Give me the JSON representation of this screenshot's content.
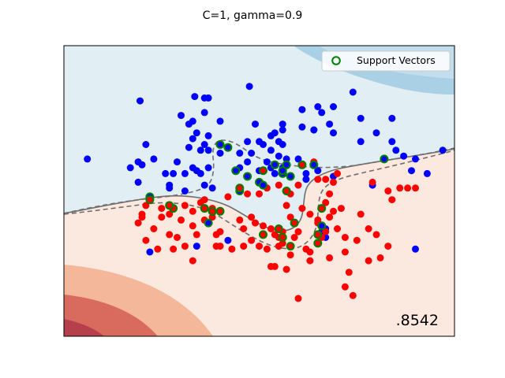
{
  "chart_data": {
    "type": "scatter",
    "title": "C=1, gamma=0.9",
    "score_label": ".8542",
    "legend": {
      "label": "Support Vectors",
      "placement": "top-right"
    },
    "xlim": [
      0,
      1
    ],
    "ylim": [
      0,
      1
    ],
    "grid": false,
    "colors": {
      "class_blue": "#0000ff",
      "class_red": "#ff0000",
      "support_vector_edge": "#008000",
      "boundary_line": "#6e6e6e",
      "region_blue_light": "#e1eef4",
      "region_blue_mid": "#a9d0e5",
      "region_red_light": "#fbe8de",
      "region_red_mid": "#f5b79a",
      "region_red_dark": "#d86a5e",
      "region_red_darkest": "#b5404c"
    },
    "series": [
      {
        "class": "blue",
        "points": [
          [
            0.475,
            0.86
          ],
          [
            0.335,
            0.825
          ],
          [
            0.195,
            0.81
          ],
          [
            0.36,
            0.77
          ],
          [
            0.49,
            0.73
          ],
          [
            0.33,
            0.74
          ],
          [
            0.34,
            0.7
          ],
          [
            0.61,
            0.78
          ],
          [
            0.37,
            0.69
          ],
          [
            0.55,
            0.67
          ],
          [
            0.21,
            0.66
          ],
          [
            0.51,
            0.66
          ],
          [
            0.47,
            0.67
          ],
          [
            0.4,
            0.63
          ],
          [
            0.33,
            0.68
          ],
          [
            0.36,
            0.66
          ],
          [
            0.65,
            0.79
          ],
          [
            0.56,
            0.73
          ],
          [
            0.27,
            0.51
          ],
          [
            0.48,
            0.63
          ],
          [
            0.69,
            0.79
          ],
          [
            0.64,
            0.71
          ],
          [
            0.56,
            0.66
          ],
          [
            0.61,
            0.72
          ],
          [
            0.35,
            0.64
          ],
          [
            0.23,
            0.61
          ],
          [
            0.28,
            0.56
          ],
          [
            0.19,
            0.6
          ],
          [
            0.54,
            0.56
          ],
          [
            0.84,
            0.75
          ],
          [
            0.17,
            0.58
          ],
          [
            0.5,
            0.57
          ],
          [
            0.31,
            0.5
          ],
          [
            0.37,
            0.58
          ],
          [
            0.06,
            0.61
          ],
          [
            0.27,
            0.52
          ],
          [
            0.35,
            0.56
          ],
          [
            0.52,
            0.6
          ],
          [
            0.36,
            0.52
          ],
          [
            0.53,
            0.64
          ],
          [
            0.47,
            0.6
          ],
          [
            0.65,
            0.57
          ],
          [
            0.76,
            0.67
          ],
          [
            0.87,
            0.62
          ],
          [
            0.79,
            0.52
          ],
          [
            0.89,
            0.57
          ],
          [
            0.97,
            0.64
          ],
          [
            0.9,
            0.61
          ],
          [
            0.68,
            0.73
          ],
          [
            0.2,
            0.59
          ],
          [
            0.69,
            0.7
          ],
          [
            0.29,
            0.6
          ],
          [
            0.62,
            0.56
          ],
          [
            0.55,
            0.62
          ],
          [
            0.38,
            0.51
          ],
          [
            0.62,
            0.54
          ],
          [
            0.32,
            0.73
          ],
          [
            0.93,
            0.56
          ],
          [
            0.6,
            0.61
          ],
          [
            0.84,
            0.67
          ],
          [
            0.26,
            0.56
          ],
          [
            0.53,
            0.58
          ],
          [
            0.56,
            0.58
          ],
          [
            0.69,
            0.55
          ],
          [
            0.45,
            0.63
          ],
          [
            0.57,
            0.61
          ],
          [
            0.34,
            0.57
          ],
          [
            0.31,
            0.56
          ],
          [
            0.45,
            0.58
          ],
          [
            0.37,
            0.64
          ],
          [
            0.42,
            0.33
          ],
          [
            0.67,
            0.37
          ],
          [
            0.34,
            0.31
          ],
          [
            0.22,
            0.29
          ],
          [
            0.9,
            0.3
          ],
          [
            0.37,
            0.82
          ],
          [
            0.74,
            0.84
          ],
          [
            0.76,
            0.75
          ],
          [
            0.8,
            0.7
          ],
          [
            0.53,
            0.69
          ],
          [
            0.85,
            0.64
          ],
          [
            0.4,
            0.74
          ],
          [
            0.33,
            0.58
          ],
          [
            0.32,
            0.65
          ],
          [
            0.66,
            0.77
          ],
          [
            0.64,
            0.71
          ],
          [
            0.56,
            0.71
          ],
          [
            0.36,
            0.82
          ],
          [
            0.3,
            0.76
          ],
          [
            0.5,
            0.67
          ],
          [
            0.19,
            0.53
          ],
          [
            0.54,
            0.7
          ],
          [
            0.66,
            0.36
          ],
          [
            0.67,
            0.34
          ]
        ],
        "support_vectors": [
          [
            0.4,
            0.66
          ],
          [
            0.42,
            0.65
          ],
          [
            0.44,
            0.57
          ],
          [
            0.47,
            0.55
          ],
          [
            0.5,
            0.53
          ],
          [
            0.51,
            0.52
          ],
          [
            0.56,
            0.56
          ],
          [
            0.58,
            0.55
          ],
          [
            0.54,
            0.59
          ],
          [
            0.64,
            0.59
          ],
          [
            0.45,
            0.5
          ],
          [
            0.22,
            0.48
          ],
          [
            0.37,
            0.39
          ],
          [
            0.66,
            0.38
          ],
          [
            0.82,
            0.61
          ],
          [
            0.57,
            0.59
          ],
          [
            0.56,
            0.57
          ]
        ]
      },
      {
        "class": "red",
        "points": [
          [
            0.3,
            0.4
          ],
          [
            0.25,
            0.44
          ],
          [
            0.23,
            0.37
          ],
          [
            0.33,
            0.43
          ],
          [
            0.29,
            0.34
          ],
          [
            0.36,
            0.4
          ],
          [
            0.35,
            0.46
          ],
          [
            0.38,
            0.41
          ],
          [
            0.33,
            0.38
          ],
          [
            0.34,
            0.35
          ],
          [
            0.24,
            0.3
          ],
          [
            0.21,
            0.33
          ],
          [
            0.33,
            0.26
          ],
          [
            0.28,
            0.3
          ],
          [
            0.39,
            0.35
          ],
          [
            0.4,
            0.36
          ],
          [
            0.45,
            0.4
          ],
          [
            0.46,
            0.37
          ],
          [
            0.53,
            0.37
          ],
          [
            0.55,
            0.34
          ],
          [
            0.56,
            0.32
          ],
          [
            0.59,
            0.34
          ],
          [
            0.5,
            0.31
          ],
          [
            0.52,
            0.3
          ],
          [
            0.58,
            0.28
          ],
          [
            0.62,
            0.3
          ],
          [
            0.63,
            0.29
          ],
          [
            0.67,
            0.36
          ],
          [
            0.68,
            0.41
          ],
          [
            0.7,
            0.37
          ],
          [
            0.72,
            0.34
          ],
          [
            0.76,
            0.42
          ],
          [
            0.78,
            0.37
          ],
          [
            0.75,
            0.33
          ],
          [
            0.72,
            0.29
          ],
          [
            0.68,
            0.27
          ],
          [
            0.63,
            0.26
          ],
          [
            0.54,
            0.24
          ],
          [
            0.57,
            0.23
          ],
          [
            0.73,
            0.22
          ],
          [
            0.74,
            0.14
          ],
          [
            0.72,
            0.17
          ],
          [
            0.6,
            0.13
          ],
          [
            0.53,
            0.24
          ],
          [
            0.48,
            0.33
          ],
          [
            0.43,
            0.3
          ],
          [
            0.39,
            0.31
          ],
          [
            0.4,
            0.31
          ],
          [
            0.46,
            0.31
          ],
          [
            0.49,
            0.39
          ],
          [
            0.36,
            0.47
          ],
          [
            0.31,
            0.45
          ],
          [
            0.27,
            0.35
          ],
          [
            0.31,
            0.31
          ],
          [
            0.38,
            0.44
          ],
          [
            0.27,
            0.42
          ],
          [
            0.21,
            0.45
          ],
          [
            0.2,
            0.42
          ],
          [
            0.25,
            0.41
          ],
          [
            0.19,
            0.39
          ],
          [
            0.2,
            0.41
          ],
          [
            0.42,
            0.48
          ],
          [
            0.48,
            0.41
          ],
          [
            0.51,
            0.38
          ],
          [
            0.54,
            0.35
          ],
          [
            0.55,
            0.31
          ],
          [
            0.56,
            0.36
          ],
          [
            0.6,
            0.36
          ],
          [
            0.65,
            0.39
          ],
          [
            0.71,
            0.44
          ],
          [
            0.78,
            0.26
          ],
          [
            0.81,
            0.27
          ],
          [
            0.8,
            0.35
          ],
          [
            0.83,
            0.31
          ],
          [
            0.83,
            0.5
          ],
          [
            0.88,
            0.51
          ],
          [
            0.9,
            0.51
          ],
          [
            0.84,
            0.47
          ],
          [
            0.79,
            0.53
          ],
          [
            0.86,
            0.51
          ],
          [
            0.7,
            0.56
          ],
          [
            0.69,
            0.53
          ],
          [
            0.65,
            0.54
          ],
          [
            0.6,
            0.52
          ],
          [
            0.58,
            0.49
          ],
          [
            0.55,
            0.52
          ],
          [
            0.52,
            0.51
          ],
          [
            0.5,
            0.49
          ],
          [
            0.47,
            0.49
          ],
          [
            0.64,
            0.6
          ],
          [
            0.67,
            0.54
          ],
          [
            0.68,
            0.49
          ],
          [
            0.57,
            0.45
          ],
          [
            0.61,
            0.44
          ],
          [
            0.65,
            0.4
          ],
          [
            0.58,
            0.41
          ],
          [
            0.67,
            0.46
          ],
          [
            0.69,
            0.43
          ],
          [
            0.63,
            0.42
          ],
          [
            0.66,
            0.34
          ]
        ],
        "support_vectors": [
          [
            0.28,
            0.44
          ],
          [
            0.36,
            0.44
          ],
          [
            0.4,
            0.43
          ],
          [
            0.27,
            0.45
          ],
          [
            0.55,
            0.37
          ],
          [
            0.51,
            0.35
          ],
          [
            0.56,
            0.34
          ],
          [
            0.65,
            0.35
          ],
          [
            0.66,
            0.44
          ],
          [
            0.61,
            0.59
          ],
          [
            0.57,
            0.5
          ],
          [
            0.59,
            0.39
          ],
          [
            0.45,
            0.51
          ],
          [
            0.51,
            0.57
          ],
          [
            0.38,
            0.43
          ],
          [
            0.22,
            0.47
          ],
          [
            0.65,
            0.32
          ],
          [
            0.58,
            0.31
          ]
        ]
      }
    ]
  }
}
